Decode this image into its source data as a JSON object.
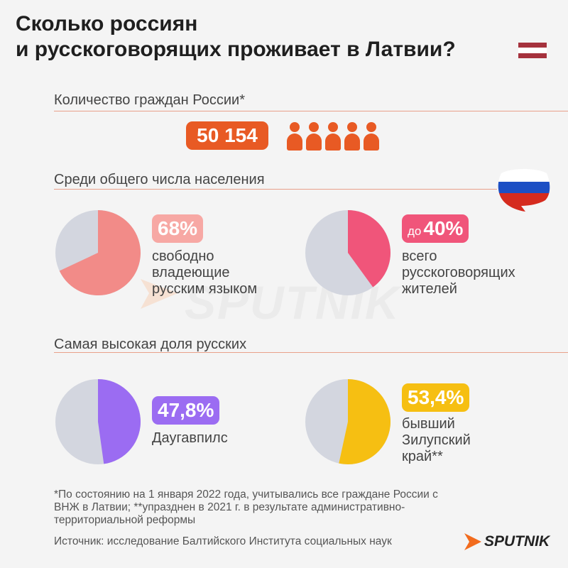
{
  "title": {
    "line1": "Сколько россиян",
    "line2": "и русскоговорящих проживает в Латвии?"
  },
  "colors": {
    "accent": "#e85a24",
    "pie_bg": "#d3d6df",
    "pink": "#f28b88",
    "pink_badge": "#f7a8a4",
    "rose": "#f0557a",
    "purple": "#9b6cf2",
    "yellow": "#f6bf12"
  },
  "sections": {
    "citizens": "Количество граждан России*",
    "population": "Среди общего числа населения",
    "highest": "Самая высокая доля русских"
  },
  "citizens_count": "50 154",
  "icons": {
    "people": "people-icon",
    "flag_latvia": "latvia-flag-icon",
    "flag_russia": "russia-flag-icon",
    "watermark": "sputnik-watermark",
    "logo": "sputnik-logo-icon"
  },
  "watermark_text": "SPUTNIK",
  "chart_data": [
    {
      "type": "pie",
      "value_percent": 68,
      "label_prefix": "",
      "value_label": "68%",
      "caption_lines": [
        "свободно",
        "владеющие",
        "русским языком"
      ]
    },
    {
      "type": "pie",
      "value_percent": 40,
      "label_prefix": "до",
      "value_label": "40%",
      "caption_lines": [
        "всего",
        "русскоговорящих",
        "жителей"
      ]
    },
    {
      "type": "pie",
      "value_percent": 47.8,
      "label_prefix": "",
      "value_label": "47,8%",
      "caption_lines": [
        "Даугавпилс"
      ]
    },
    {
      "type": "pie",
      "value_percent": 53.4,
      "label_prefix": "",
      "value_label": "53,4%",
      "caption_lines": [
        "бывший",
        "Зилупский",
        "край**"
      ]
    }
  ],
  "footnote": "*По состоянию на 1 января 2022 года, учитывались все граждане России с ВНЖ в Латвии; **упразднен в 2021 г. в результате административно-территориальной реформы",
  "source": "Источник: исследование Балтийского Института социальных наук",
  "logo_text": "SPUTNIK"
}
